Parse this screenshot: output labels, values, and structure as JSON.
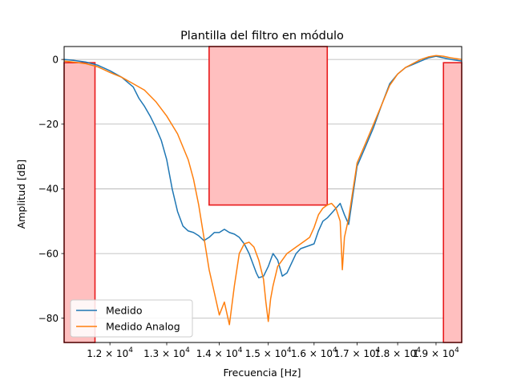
{
  "chart_data": {
    "type": "line",
    "title": "Plantilla del filtro en módulo",
    "xlabel": "Frecuencia [Hz]",
    "ylabel": "Amplitud [dB]",
    "x_scale": "log",
    "xlim": [
      11250,
      19700
    ],
    "ylim": [
      -87.5,
      4
    ],
    "grid": "horizontal",
    "legend_position": "lower-left",
    "x_ticks": [
      {
        "value": 12000,
        "mantissa": "1.2",
        "label": "1.2 × 10^4"
      },
      {
        "value": 13000,
        "mantissa": "1.3",
        "label": "1.3 × 10^4"
      },
      {
        "value": 14000,
        "mantissa": "1.4",
        "label": "1.4 × 10^4"
      },
      {
        "value": 15000,
        "mantissa": "1.5",
        "label": "1.5 × 10^4"
      },
      {
        "value": 16000,
        "mantissa": "1.6",
        "label": "1.6 × 10^4"
      },
      {
        "value": 17000,
        "mantissa": "1.7",
        "label": "1.7 × 10^4"
      },
      {
        "value": 18000,
        "mantissa": "1.8",
        "label": "1.8 × 10^4"
      },
      {
        "value": 19000,
        "mantissa": "1.9",
        "label": "1.9 × 10^4"
      }
    ],
    "y_ticks": [
      {
        "value": 0,
        "label": "0"
      },
      {
        "value": -20,
        "label": "−20"
      },
      {
        "value": -40,
        "label": "−40"
      },
      {
        "value": -60,
        "label": "−60"
      },
      {
        "value": -80,
        "label": "−80"
      }
    ],
    "template_regions": [
      {
        "x0": 11250,
        "x1": 11750,
        "y0": -87.5,
        "y1": -1
      },
      {
        "x0": 13800,
        "x1": 16300,
        "y0": -45,
        "y1": 4
      },
      {
        "x0": 19200,
        "x1": 19700,
        "y0": -87.5,
        "y1": -1
      }
    ],
    "template_fill_color": "#ffbfbf",
    "template_edge_color": "#e8191b",
    "series": [
      {
        "name": "Medido",
        "color": "#1f77b4",
        "x": [
          11250,
          11400,
          11600,
          11800,
          12000,
          12200,
          12400,
          12500,
          12600,
          12700,
          12800,
          12900,
          13000,
          13100,
          13200,
          13300,
          13400,
          13500,
          13600,
          13700,
          13800,
          13900,
          14000,
          14100,
          14200,
          14300,
          14400,
          14500,
          14600,
          14700,
          14750,
          14800,
          14900,
          15000,
          15050,
          15100,
          15200,
          15300,
          15400,
          15500,
          15600,
          15700,
          15800,
          15900,
          16000,
          16100,
          16200,
          16300,
          16400,
          16500,
          16600,
          16700,
          16800,
          17000,
          17200,
          17400,
          17600,
          17800,
          18000,
          18200,
          18400,
          18600,
          18800,
          19000,
          19200,
          19400,
          19700
        ],
        "y": [
          0,
          -0.3,
          -0.8,
          -1.8,
          -3.5,
          -5.5,
          -8.5,
          -12,
          -14.5,
          -17.5,
          -21,
          -25,
          -31,
          -40,
          -47,
          -51.5,
          -53,
          -53.5,
          -54.5,
          -56,
          -55,
          -53.5,
          -53.5,
          -52.5,
          -53.5,
          -54,
          -55,
          -57,
          -60,
          -64,
          -66,
          -67.5,
          -67,
          -64,
          -62,
          -60,
          -62,
          -67,
          -66,
          -63,
          -60,
          -58.5,
          -58,
          -57.5,
          -57,
          -53,
          -50,
          -49,
          -47.5,
          -46,
          -44.5,
          -48,
          -51,
          -33,
          -27,
          -21,
          -14,
          -7.5,
          -4.5,
          -2.5,
          -1.5,
          -0.5,
          0.5,
          1,
          0.5,
          0,
          -0.5
        ]
      },
      {
        "name": "Medido Analog",
        "color": "#ff7f0e",
        "x": [
          11250,
          11400,
          11600,
          11800,
          12000,
          12200,
          12400,
          12600,
          12800,
          13000,
          13200,
          13400,
          13500,
          13600,
          13700,
          13800,
          13900,
          14000,
          14100,
          14200,
          14300,
          14400,
          14500,
          14600,
          14700,
          14800,
          14900,
          14950,
          15000,
          15050,
          15100,
          15200,
          15300,
          15400,
          15500,
          15600,
          15700,
          15800,
          15900,
          16000,
          16100,
          16200,
          16300,
          16400,
          16500,
          16600,
          16650,
          16700,
          16800,
          17000,
          17200,
          17400,
          17600,
          17800,
          18000,
          18200,
          18400,
          18600,
          18800,
          19000,
          19200,
          19400,
          19700
        ],
        "y": [
          -0.5,
          -0.8,
          -1.3,
          -2.3,
          -4,
          -5.5,
          -7.5,
          -9.5,
          -13,
          -17.5,
          -23,
          -31,
          -37,
          -45,
          -55,
          -65,
          -72,
          -79,
          -75,
          -82,
          -70,
          -60,
          -57,
          -56.5,
          -58,
          -62,
          -68,
          -75,
          -81,
          -74,
          -70,
          -64,
          -62,
          -60,
          -59,
          -58,
          -57,
          -56,
          -55,
          -52,
          -48,
          -46,
          -45,
          -44.5,
          -46,
          -50,
          -65,
          -55,
          -49,
          -32,
          -26,
          -20,
          -14,
          -8,
          -4.5,
          -2.5,
          -1.2,
          0,
          0.8,
          1.2,
          1,
          0.5,
          0
        ]
      }
    ]
  }
}
